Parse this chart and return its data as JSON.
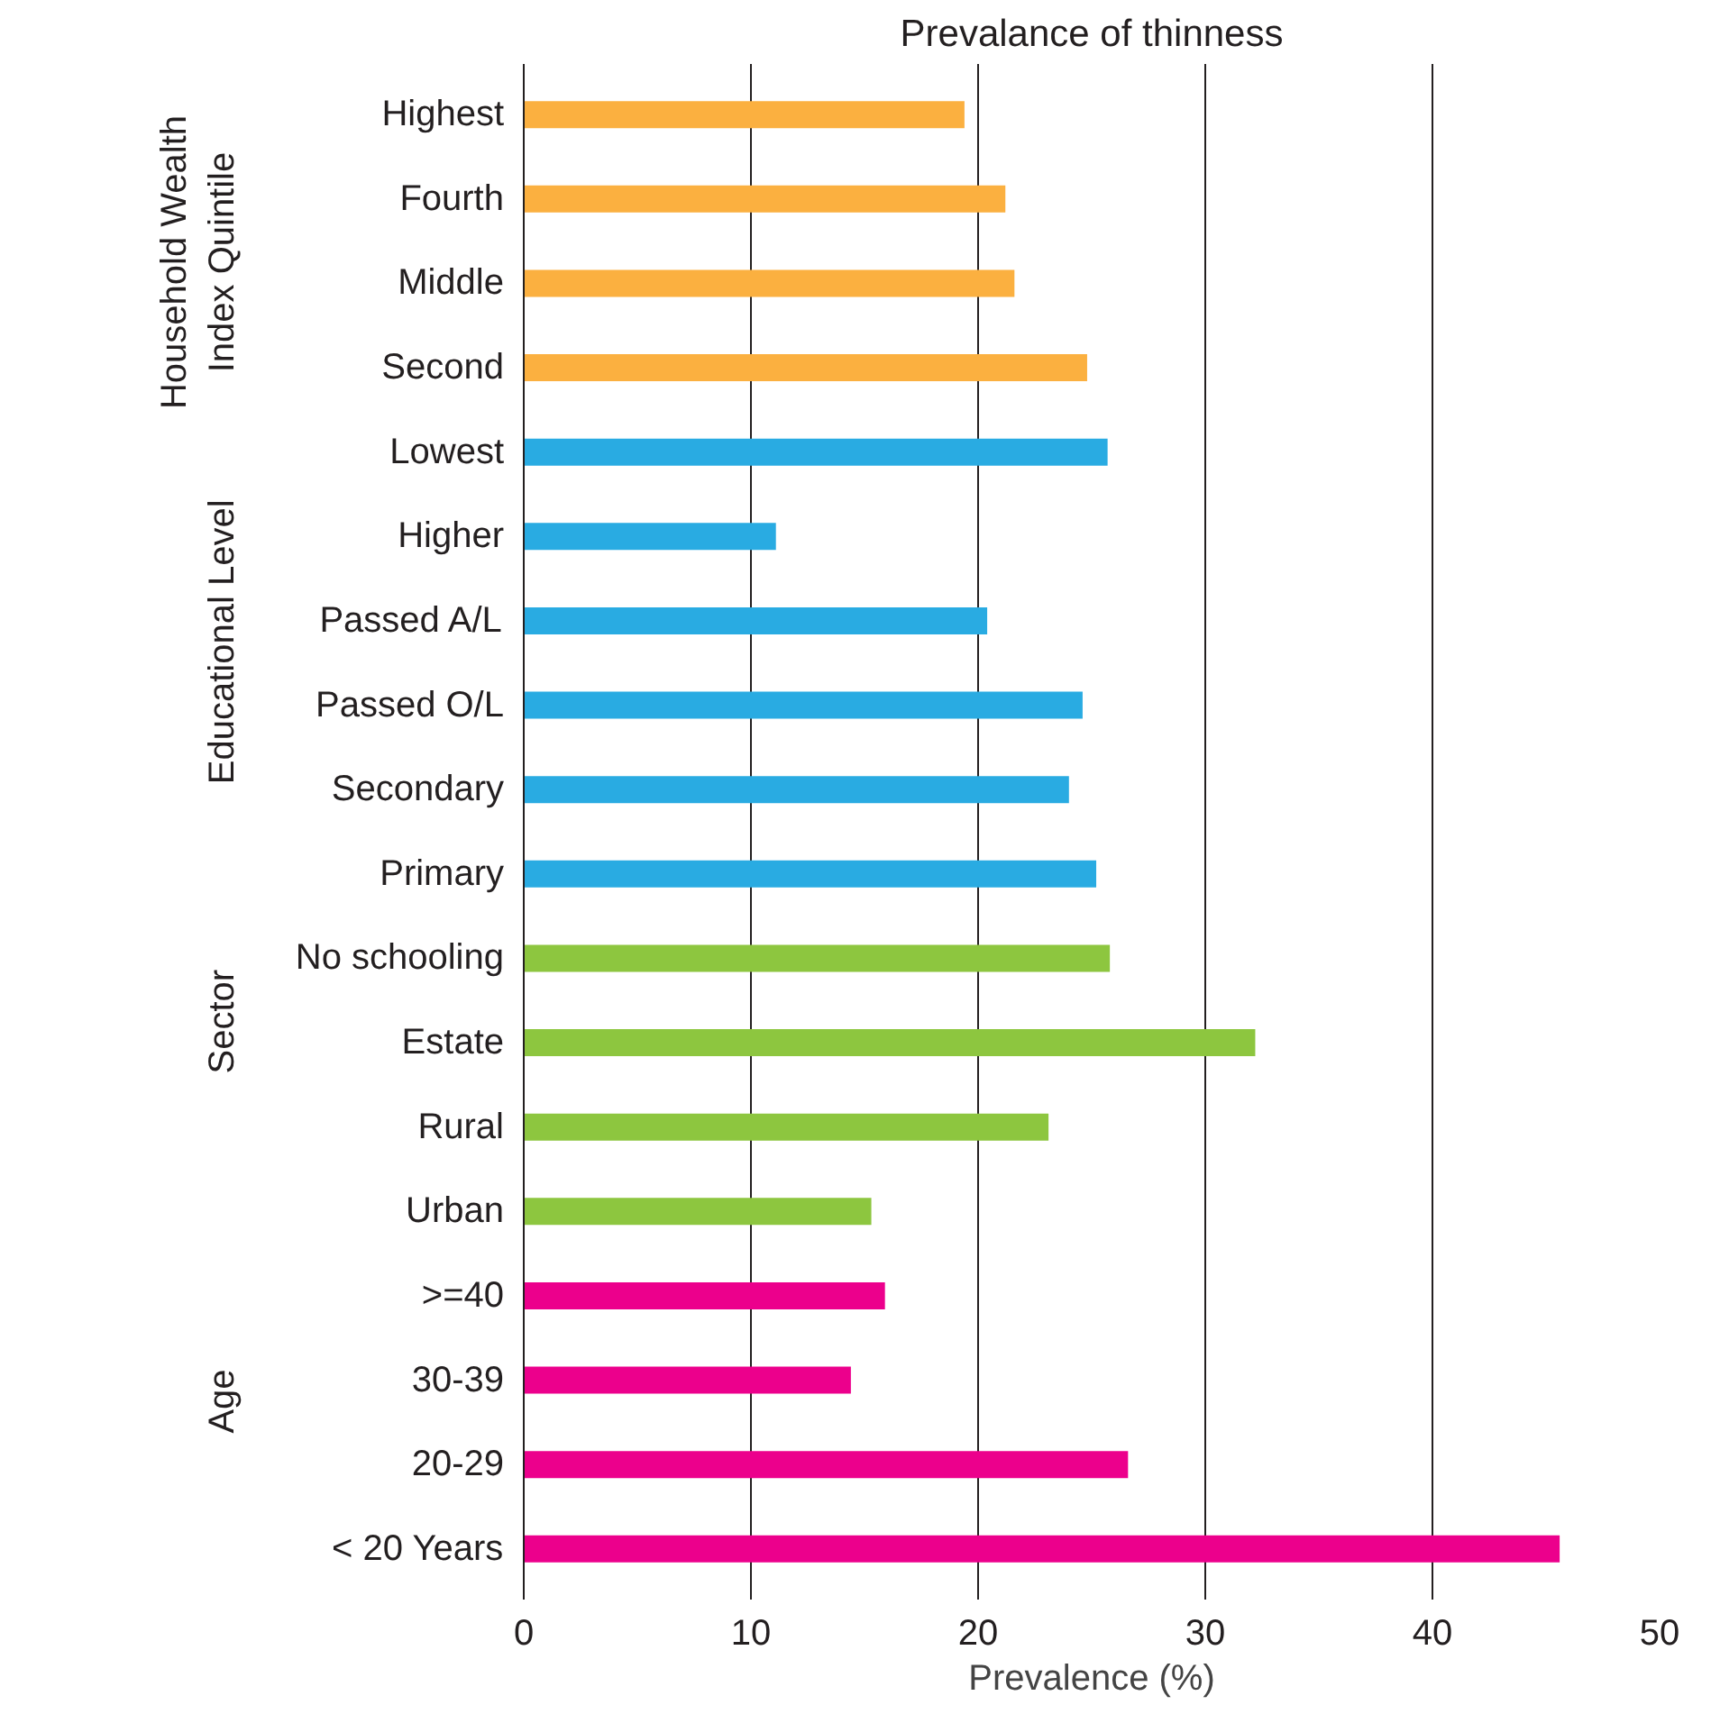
{
  "chart_data": {
    "type": "bar",
    "orientation": "horizontal",
    "title": "Prevalance of thinness",
    "xlabel": "Prevalence (%)",
    "categories": [
      "Highest",
      "Fourth",
      "Middle",
      "Second",
      "Lowest",
      "Higher",
      "Passed A/L",
      "Passed O/L",
      "Secondary",
      "Primary",
      "No schooling",
      "Estate",
      "Rural",
      "Urban",
      ">=40",
      "30-39",
      "20-29",
      "< 20 Years"
    ],
    "values": [
      19.4,
      21.2,
      21.6,
      24.8,
      25.7,
      11.1,
      20.4,
      24.6,
      24.0,
      25.2,
      25.8,
      32.2,
      23.1,
      15.3,
      15.9,
      14.4,
      26.6,
      45.6
    ],
    "colors": [
      "#fbb040",
      "#fbb040",
      "#fbb040",
      "#fbb040",
      "#29abe2",
      "#29abe2",
      "#29abe2",
      "#29abe2",
      "#29abe2",
      "#29abe2",
      "#8dc63f",
      "#8dc63f",
      "#8dc63f",
      "#8dc63f",
      "#ec008c",
      "#ec008c",
      "#ec008c",
      "#ec008c"
    ],
    "xlim": [
      0,
      50
    ],
    "xticks": [
      0,
      10,
      20,
      30,
      40,
      50
    ],
    "grid": "x",
    "annotations": [
      "Household Wealth\nIndex Quintile",
      "Educational Level",
      "Sector",
      "Age"
    ]
  }
}
